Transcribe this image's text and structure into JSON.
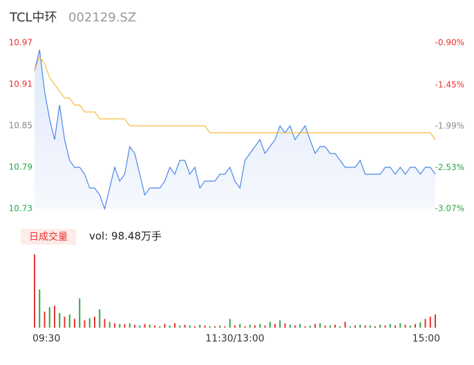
{
  "chart_data": [
    {
      "type": "line",
      "title": "TCL中环",
      "subtitle": "002129.SZ",
      "x": [
        0,
        3,
        6,
        9,
        12,
        15,
        18,
        21,
        24,
        27,
        30,
        33,
        36,
        39,
        42,
        45,
        48,
        51,
        54,
        57,
        60,
        63,
        66,
        69,
        72,
        75,
        78,
        81,
        84,
        87,
        90,
        93,
        96,
        99,
        102,
        105,
        108,
        111,
        114,
        117,
        120,
        123,
        126,
        129,
        132,
        135,
        138,
        141,
        144,
        147,
        150,
        153,
        156,
        159,
        162,
        165,
        168,
        171,
        174,
        177,
        180,
        183,
        186,
        189,
        192,
        195,
        198,
        201,
        204,
        207,
        210,
        213,
        216,
        219,
        222,
        225,
        228,
        231,
        234,
        237,
        240
      ],
      "xlim": [
        0,
        240
      ],
      "xticks": [
        {
          "value": 0,
          "label": "09:30"
        },
        {
          "value": 120,
          "label": "11:30/13:00"
        },
        {
          "value": 240,
          "label": "15:00"
        }
      ],
      "ylim": [
        10.73,
        10.97
      ],
      "yticks": [
        10.73,
        10.79,
        10.85,
        10.91,
        10.97
      ],
      "ytick_colors": [
        "#27a844",
        "#27a844",
        "#888888",
        "#e8312f",
        "#e8312f"
      ],
      "y2lim": [
        -3.07,
        -0.9
      ],
      "y2ticks": [
        {
          "value": -3.07,
          "label": "-3.07%"
        },
        {
          "value": -2.53,
          "label": "-2.53%"
        },
        {
          "value": -1.99,
          "label": "-1.99%"
        },
        {
          "value": -1.45,
          "label": "-1.45%"
        },
        {
          "value": -0.9,
          "label": "-0.90%"
        }
      ],
      "y2tick_colors": [
        "#27a844",
        "#27a844",
        "#888888",
        "#e8312f",
        "#e8312f"
      ],
      "series": [
        {
          "color": "#4a86e8",
          "values": [
            10.93,
            10.96,
            10.9,
            10.86,
            10.83,
            10.88,
            10.83,
            10.8,
            10.79,
            10.79,
            10.78,
            10.76,
            10.76,
            10.75,
            10.73,
            10.76,
            10.79,
            10.77,
            10.78,
            10.82,
            10.81,
            10.78,
            10.75,
            10.76,
            10.76,
            10.76,
            10.77,
            10.79,
            10.78,
            10.8,
            10.8,
            10.78,
            10.79,
            10.76,
            10.77,
            10.77,
            10.77,
            10.78,
            10.78,
            10.79,
            10.77,
            10.76,
            10.8,
            10.81,
            10.82,
            10.83,
            10.81,
            10.82,
            10.83,
            10.85,
            10.84,
            10.85,
            10.83,
            10.84,
            10.85,
            10.83,
            10.81,
            10.82,
            10.82,
            10.81,
            10.81,
            10.8,
            10.79,
            10.79,
            10.79,
            10.8,
            10.78,
            10.78,
            10.78,
            10.78,
            10.79,
            10.79,
            10.78,
            10.79,
            10.78,
            10.79,
            10.79,
            10.78,
            10.79,
            10.79,
            10.78
          ]
        },
        {
          "color": "#f5b93a",
          "values": [
            10.93,
            10.95,
            10.94,
            10.92,
            10.91,
            10.9,
            10.89,
            10.89,
            10.88,
            10.88,
            10.87,
            10.87,
            10.87,
            10.86,
            10.86,
            10.86,
            10.86,
            10.86,
            10.86,
            10.85,
            10.85,
            10.85,
            10.85,
            10.85,
            10.85,
            10.85,
            10.85,
            10.85,
            10.85,
            10.85,
            10.85,
            10.85,
            10.85,
            10.85,
            10.85,
            10.84,
            10.84,
            10.84,
            10.84,
            10.84,
            10.84,
            10.84,
            10.84,
            10.84,
            10.84,
            10.84,
            10.84,
            10.84,
            10.84,
            10.84,
            10.84,
            10.84,
            10.84,
            10.84,
            10.84,
            10.84,
            10.84,
            10.84,
            10.84,
            10.84,
            10.84,
            10.84,
            10.84,
            10.84,
            10.84,
            10.84,
            10.84,
            10.84,
            10.84,
            10.84,
            10.84,
            10.84,
            10.84,
            10.84,
            10.84,
            10.84,
            10.84,
            10.84,
            10.84,
            10.84,
            10.83
          ]
        }
      ]
    },
    {
      "type": "bar",
      "label": "日成交量",
      "annotation": "vol: 98.48万手",
      "x": [
        0,
        3,
        6,
        9,
        12,
        15,
        18,
        21,
        24,
        27,
        30,
        33,
        36,
        39,
        42,
        45,
        48,
        51,
        54,
        57,
        60,
        63,
        66,
        69,
        72,
        75,
        78,
        81,
        84,
        87,
        90,
        93,
        96,
        99,
        102,
        105,
        108,
        111,
        114,
        117,
        120,
        123,
        126,
        129,
        132,
        135,
        138,
        141,
        144,
        147,
        150,
        153,
        156,
        159,
        162,
        165,
        168,
        171,
        174,
        177,
        180,
        183,
        186,
        189,
        192,
        195,
        198,
        201,
        204,
        207,
        210,
        213,
        216,
        219,
        222,
        225,
        228,
        231,
        234,
        237,
        240
      ],
      "ylim": [
        0,
        100
      ],
      "series": [
        {
          "color": "#e8312f",
          "values": [
            100,
            null,
            22,
            null,
            30,
            null,
            15,
            null,
            12,
            null,
            10,
            null,
            15,
            null,
            12,
            null,
            6,
            null,
            5,
            null,
            4,
            null,
            5,
            null,
            3,
            null,
            5,
            null,
            6,
            null,
            4,
            null,
            2,
            null,
            3,
            null,
            2,
            null,
            2,
            null,
            3,
            null,
            2,
            null,
            3,
            null,
            3,
            null,
            5,
            null,
            6,
            null,
            3,
            null,
            2,
            null,
            5,
            null,
            3,
            null,
            4,
            null,
            8,
            null,
            3,
            null,
            3,
            null,
            2,
            null,
            3,
            null,
            3,
            null,
            4,
            null,
            5,
            null,
            12,
            15,
            18
          ]
        },
        {
          "color": "#27a844",
          "values": [
            null,
            52,
            null,
            28,
            null,
            20,
            null,
            18,
            null,
            40,
            null,
            13,
            null,
            25,
            null,
            8,
            null,
            5,
            null,
            6,
            null,
            3,
            null,
            4,
            null,
            2,
            null,
            3,
            null,
            3,
            null,
            3,
            null,
            4,
            null,
            2,
            null,
            3,
            null,
            12,
            null,
            5,
            null,
            4,
            null,
            5,
            null,
            8,
            null,
            10,
            null,
            4,
            null,
            5,
            null,
            3,
            null,
            6,
            null,
            3,
            null,
            2,
            null,
            2,
            null,
            4,
            null,
            3,
            null,
            4,
            null,
            5,
            null,
            6,
            null,
            3,
            null,
            7,
            null,
            null,
            null
          ]
        }
      ]
    }
  ]
}
